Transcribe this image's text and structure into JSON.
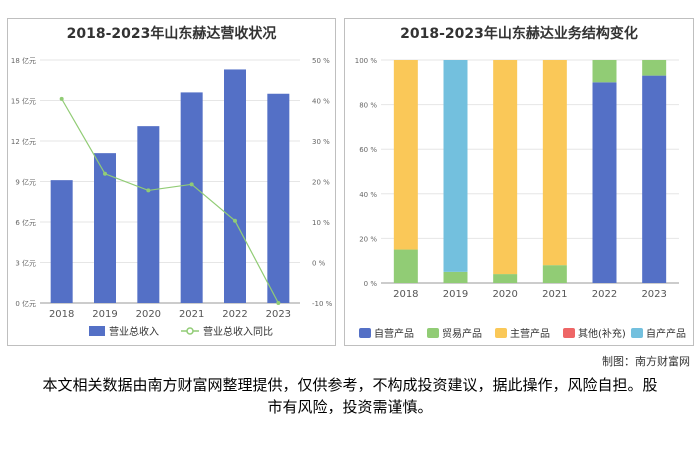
{
  "chart_data": [
    {
      "type": "bar",
      "title": "2018-2023年山东赫达营收状况",
      "categories": [
        "2018",
        "2019",
        "2020",
        "2021",
        "2022",
        "2023"
      ],
      "y_left": {
        "min": 0,
        "max": 18,
        "step": 3,
        "ticks": [
          "0 亿元",
          "3 亿元",
          "6 亿元",
          "9 亿元",
          "12 亿元",
          "15 亿元",
          "18 亿元"
        ]
      },
      "y_right": {
        "min": -10,
        "max": 50,
        "step": 10,
        "ticks": [
          "-10 %",
          "0 %",
          "10 %",
          "20 %",
          "30 %",
          "40 %",
          "50 %"
        ]
      },
      "series": [
        {
          "name": "营业总收入",
          "type": "bar",
          "axis": "left",
          "values": [
            9.1,
            11.1,
            13.1,
            15.6,
            17.3,
            15.5
          ]
        },
        {
          "name": "营业总收入同比",
          "type": "line",
          "axis": "right",
          "values": [
            40.4,
            21.9,
            17.8,
            19.3,
            10.3,
            -10.0
          ]
        }
      ],
      "legend": "bottom",
      "colors": {
        "bar": "#5470c6",
        "line": "#91cc75"
      }
    },
    {
      "type": "bar",
      "stacked": true,
      "title": "2018-2023年山东赫达业务结构变化",
      "categories": [
        "2018",
        "2019",
        "2020",
        "2021",
        "2022",
        "2023"
      ],
      "y": {
        "min": 0,
        "max": 100,
        "ticks": [
          "0 %",
          "20 %",
          "40 %",
          "60 %",
          "80 %",
          "100 %"
        ]
      },
      "series": [
        {
          "name": "自营产品",
          "color": "#5470c6",
          "values": [
            0,
            0,
            0,
            0,
            90,
            93
          ]
        },
        {
          "name": "贸易产品",
          "color": "#91cc75",
          "values": [
            15,
            5,
            4,
            8,
            10,
            7
          ]
        },
        {
          "name": "主营产品",
          "color": "#fac858",
          "values": [
            85,
            0,
            96,
            92,
            0,
            0
          ]
        },
        {
          "name": "其他(补充)",
          "color": "#ee6666",
          "values": [
            0,
            0,
            0,
            0,
            0,
            0
          ]
        },
        {
          "name": "自产产品",
          "color": "#73c0de",
          "values": [
            0,
            95,
            0,
            0,
            0,
            0
          ]
        }
      ],
      "legend": "bottom"
    }
  ],
  "footer": {
    "credit": "制图：南方财富网",
    "disclaimer": "本文相关数据由南方财富网整理提供，仅供参考，不构成投资建议，据此操作，风险自担。股市有风险，投资需谨慎。"
  }
}
